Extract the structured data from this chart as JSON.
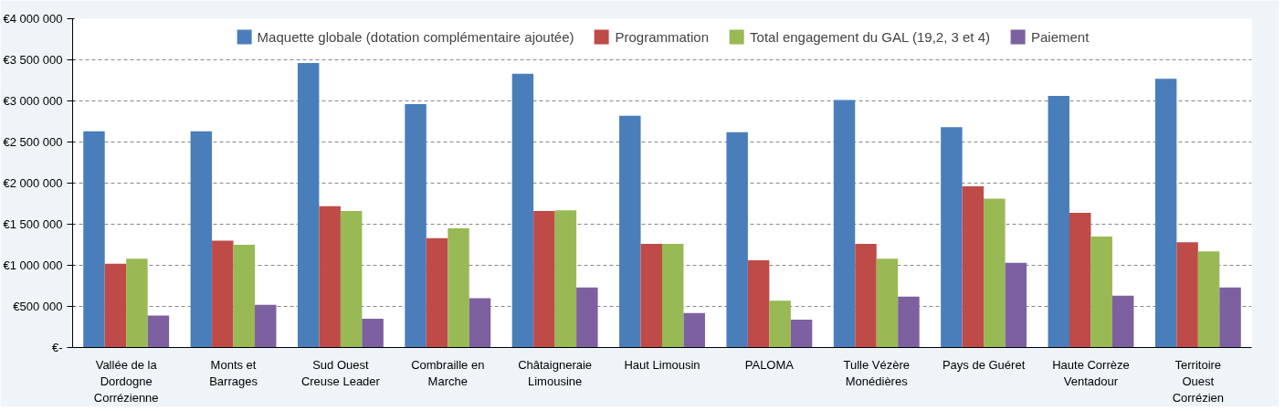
{
  "chart_data": {
    "type": "bar",
    "categories": [
      "Vallée de la\nDordogne\nCorrézienne",
      "Monts et\nBarrages",
      "Sud Ouest\nCreuse Leader",
      "Combraille en\nMarche",
      "Châtaigneraie\nLimousine",
      "Haut Limousin",
      "PALOMA",
      "Tulle Vézère\nMonédières",
      "Pays de Guéret",
      "Haute Corrèze\nVentadour",
      "Territoire\nOuest\nCorrézien"
    ],
    "series": [
      {
        "name": "Maquette globale (dotation complémentaire ajoutée)",
        "color": "#4a7ebb",
        "values": [
          2630000,
          2630000,
          3460000,
          2960000,
          3330000,
          2820000,
          2620000,
          3010000,
          2680000,
          3060000,
          3270000
        ]
      },
      {
        "name": "Programmation",
        "color": "#be4b48",
        "values": [
          1020000,
          1300000,
          1720000,
          1330000,
          1660000,
          1260000,
          1060000,
          1260000,
          1960000,
          1640000,
          1280000
        ]
      },
      {
        "name": "Total engagement du GAL (19,2, 3 et 4)",
        "color": "#98b954",
        "values": [
          1080000,
          1250000,
          1660000,
          1450000,
          1670000,
          1260000,
          570000,
          1080000,
          1810000,
          1350000,
          1170000
        ]
      },
      {
        "name": "Paiement",
        "color": "#7d60a0",
        "values": [
          390000,
          520000,
          350000,
          600000,
          730000,
          420000,
          340000,
          620000,
          1030000,
          630000,
          730000
        ]
      }
    ],
    "ylim": [
      0,
      4000000
    ],
    "yticks": [
      {
        "value": 0,
        "label": "€-"
      },
      {
        "value": 500000,
        "label": "€500 000"
      },
      {
        "value": 1000000,
        "label": "€1 000 000"
      },
      {
        "value": 1500000,
        "label": "€1 500 000"
      },
      {
        "value": 2000000,
        "label": "€2 000 000"
      },
      {
        "value": 2500000,
        "label": "€2 500 000"
      },
      {
        "value": 3000000,
        "label": "€3 000 000"
      },
      {
        "value": 3500000,
        "label": "€3 500 000"
      },
      {
        "value": 4000000,
        "label": "€4 000 000"
      }
    ],
    "grid": "y",
    "legend": "top"
  }
}
